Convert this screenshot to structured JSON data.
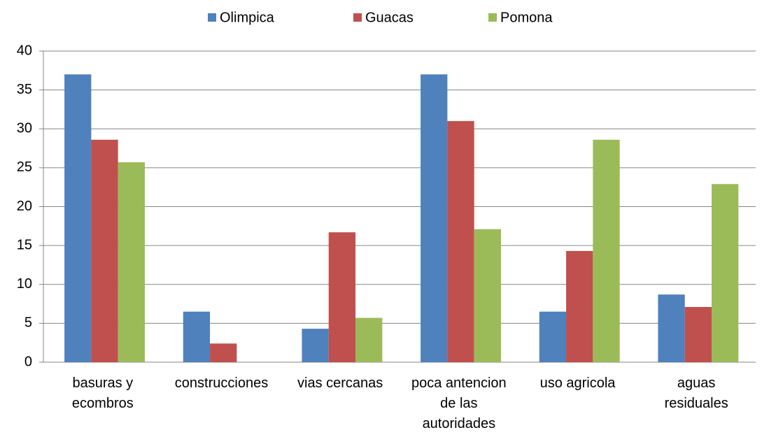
{
  "chart_data": {
    "type": "bar",
    "categories": [
      "basuras y\necombros",
      "construcciones",
      "vias cercanas",
      "poca antencion\nde las\nautoridades",
      "uso agricola",
      "aguas\nresiduales"
    ],
    "series": [
      {
        "name": "Olimpica",
        "color": "#4f81bd",
        "values": [
          37,
          6.5,
          4.3,
          37,
          6.5,
          8.7
        ]
      },
      {
        "name": "Guacas",
        "color": "#c0504d",
        "values": [
          28.6,
          2.4,
          16.7,
          31,
          14.3,
          7.1
        ]
      },
      {
        "name": "Pomona",
        "color": "#9bbb59",
        "values": [
          25.7,
          0,
          5.7,
          17.1,
          28.6,
          22.9
        ]
      }
    ],
    "ylim": [
      0,
      40
    ],
    "yticks": [
      0,
      5,
      10,
      15,
      20,
      25,
      30,
      35,
      40
    ],
    "grid": true,
    "legend": "top"
  }
}
